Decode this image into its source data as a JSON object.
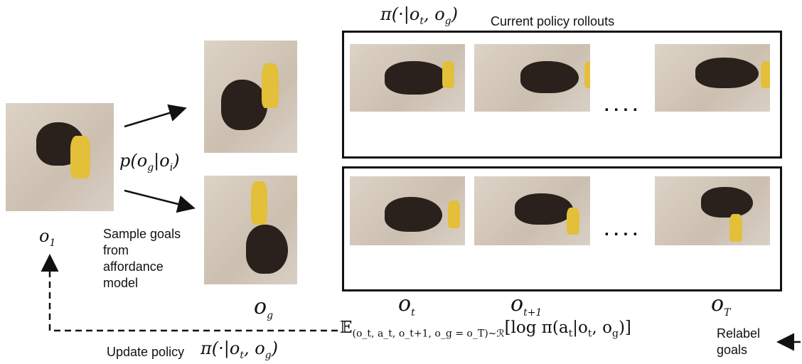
{
  "top_policy": [
    {
      "text": "π(·|o"
    },
    {
      "sub": "t"
    },
    {
      "text": ", o"
    },
    {
      "sub": "g"
    },
    {
      "text": ")"
    }
  ],
  "rollouts_title": "Current policy rollouts",
  "goal_distribution": [
    {
      "text": "p(o"
    },
    {
      "sub": "g"
    },
    {
      "text": "|o"
    },
    {
      "sub": "i"
    },
    {
      "text": ")"
    }
  ],
  "initial_obs": [
    {
      "text": "o"
    },
    {
      "sub": "1"
    }
  ],
  "sample_goals": [
    "Sample goals",
    "from",
    "affordance",
    "model"
  ],
  "goal_obs": [
    {
      "text": "o"
    },
    {
      "sub": "g"
    }
  ],
  "step_labels": [
    [
      {
        "text": "o"
      },
      {
        "sub": "t"
      }
    ],
    [
      {
        "text": "o"
      },
      {
        "sub": "t+1"
      }
    ],
    [
      {
        "text": "o"
      },
      {
        "sub": "T"
      }
    ]
  ],
  "ellipsis": ". . . .",
  "objective": [
    {
      "text": "𝔼"
    },
    {
      "sub": "(o_t, a_t, o_t+1, o_g = o_T)∼ℛ"
    },
    {
      "text": "[log π(a"
    },
    {
      "sub": "t"
    },
    {
      "text": "|o"
    },
    {
      "sub": "t"
    },
    {
      "text": ", o"
    },
    {
      "sub": "g"
    },
    {
      "text": ")]"
    }
  ],
  "relabel": [
    "Relabel",
    "goals"
  ],
  "update_text": "Update policy",
  "update_policy": [
    {
      "text": "π(·|o"
    },
    {
      "sub": "t"
    },
    {
      "text": ", o"
    },
    {
      "sub": "g"
    },
    {
      "text": ")"
    }
  ]
}
